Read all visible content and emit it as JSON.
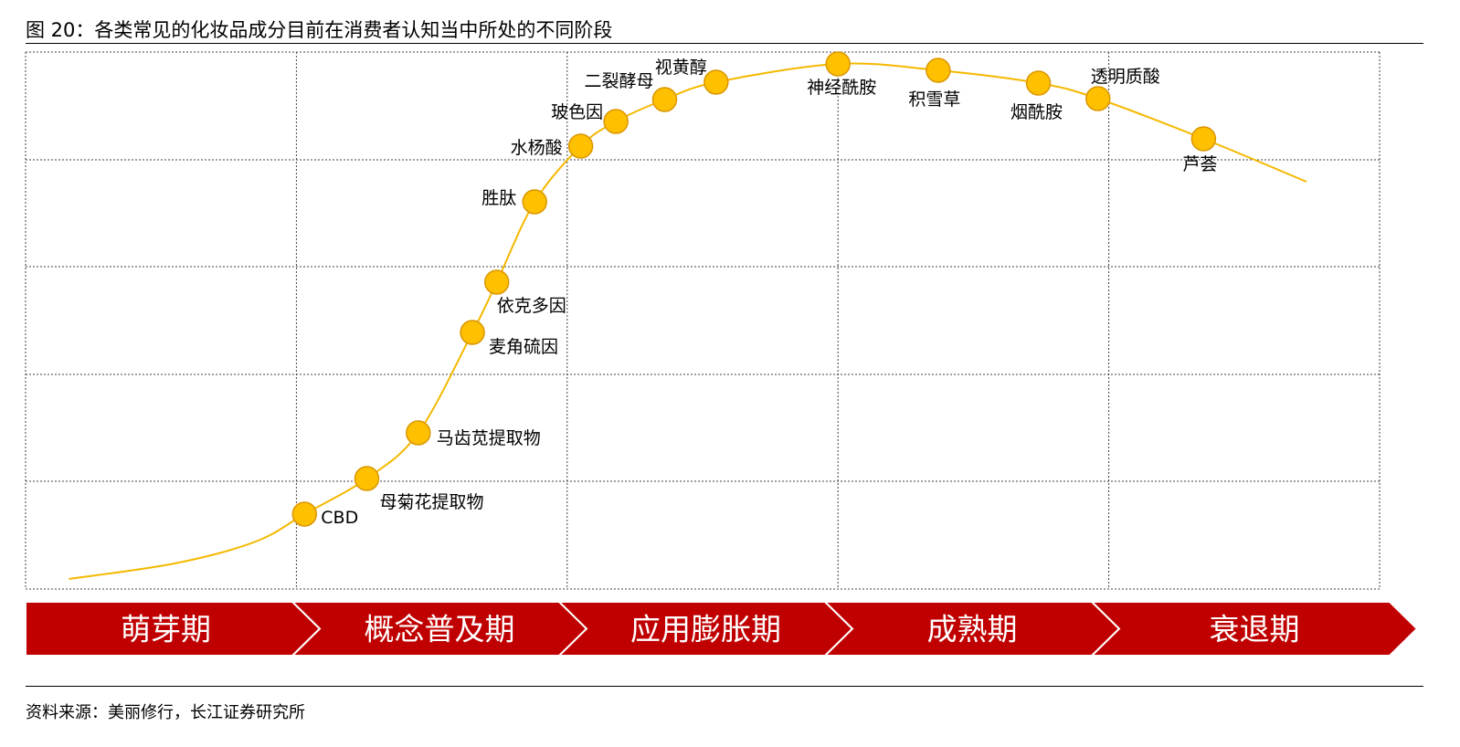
{
  "figure": {
    "title": "图 20：各类常见的化妆品成分目前在消费者认知当中所处的不同阶段",
    "source": "资料来源：美丽修行，长江证券研究所"
  },
  "colors": {
    "curve": "#f5b800",
    "point_fill": "#ffc000",
    "point_stroke": "#d99600",
    "band": "#c00000",
    "grid": "#404040"
  },
  "chart_data": {
    "type": "line",
    "title": "",
    "xlabel": "",
    "ylabel": "",
    "grid": true,
    "stages": [
      "萌芽期",
      "概念普及期",
      "应用膨胀期",
      "成熟期",
      "衰退期"
    ],
    "points": [
      {
        "label": "CBD",
        "stage_position": 1.03
      },
      {
        "label": "母菊花提取物",
        "stage_position": 1.26
      },
      {
        "label": "马齿苋提取物",
        "stage_position": 1.45
      },
      {
        "label": "麦角硫因",
        "stage_position": 1.65
      },
      {
        "label": "依克多因",
        "stage_position": 1.74
      },
      {
        "label": "胜肽",
        "stage_position": 1.88
      },
      {
        "label": "水杨酸",
        "stage_position": 2.05
      },
      {
        "label": "玻色因",
        "stage_position": 2.18
      },
      {
        "label": "二裂酵母",
        "stage_position": 2.36
      },
      {
        "label": "视黄醇",
        "stage_position": 2.55
      },
      {
        "label": "神经酰胺",
        "stage_position": 3.0
      },
      {
        "label": "积雪草",
        "stage_position": 3.37
      },
      {
        "label": "烟酰胺",
        "stage_position": 3.74
      },
      {
        "label": "透明质酸",
        "stage_position": 3.96
      },
      {
        "label": "芦荟",
        "stage_position": 4.35
      }
    ]
  }
}
